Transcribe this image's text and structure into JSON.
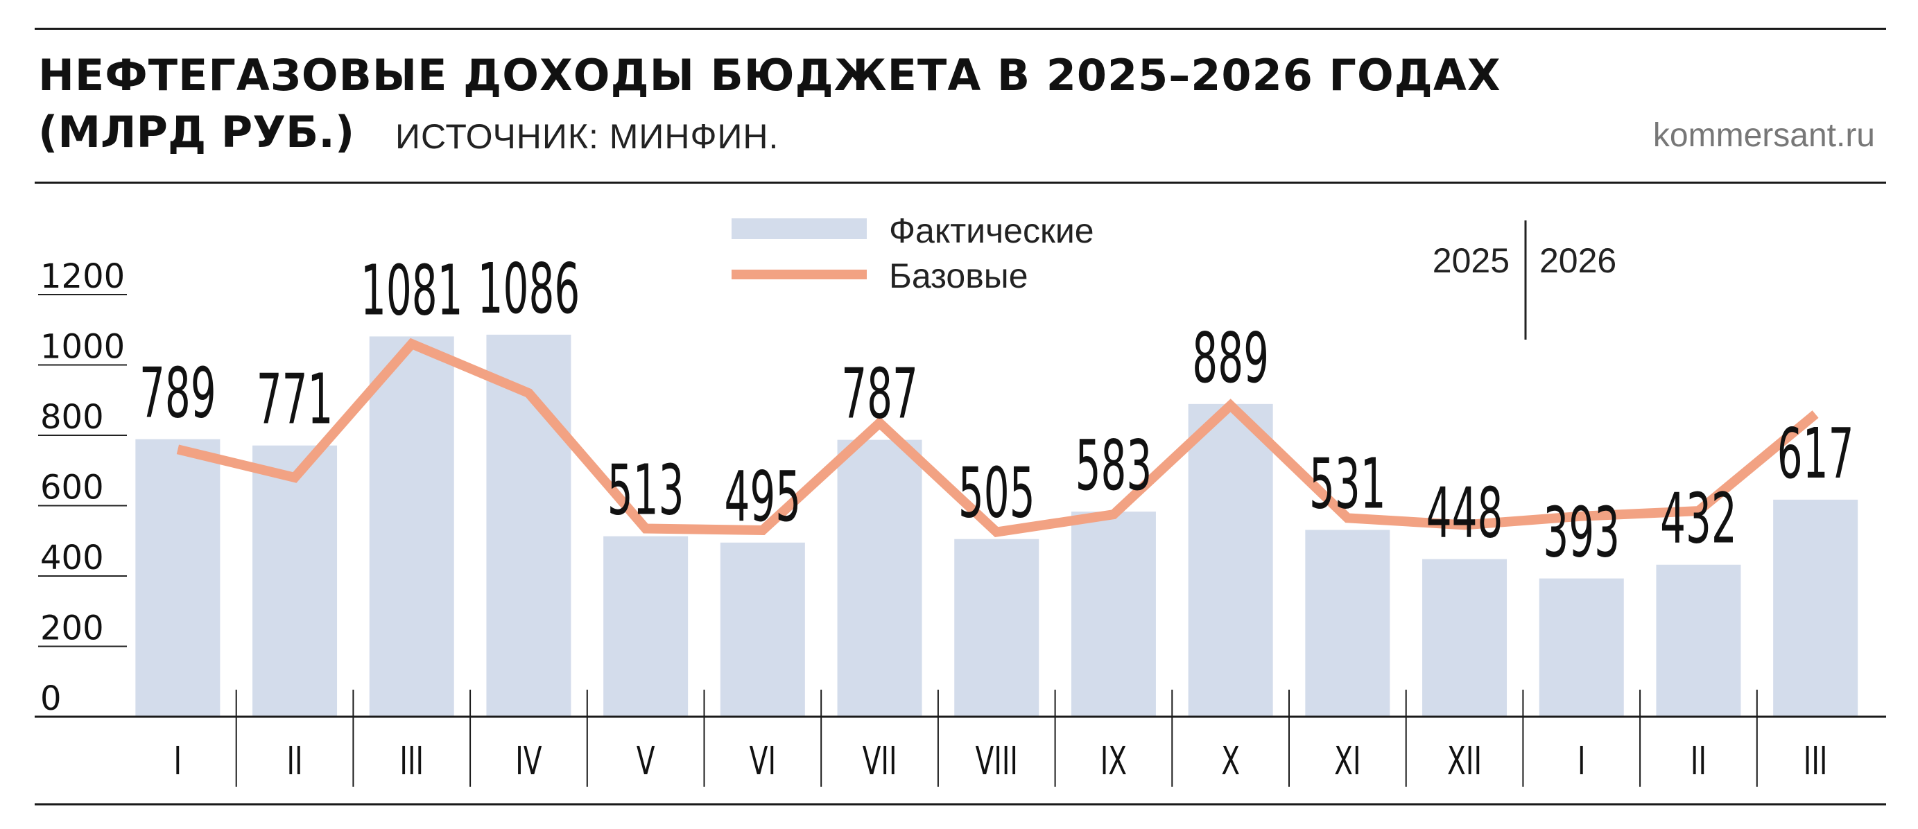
{
  "header": {
    "title_line1": "НЕФТЕГАЗОВЫЕ ДОХОДЫ БЮДЖЕТА В 2025–2026 ГОДАХ",
    "title_line2": "(МЛРД РУБ.)",
    "source": "ИСТОЧНИК: МИНФИН.",
    "site": "kommersant.ru"
  },
  "chart_data": {
    "type": "bar",
    "title": "НЕФТЕГАЗОВЫЕ ДОХОДЫ БЮДЖЕТА В 2025–2026 ГОДАХ (МЛРД РУБ.)",
    "categories": [
      "I",
      "II",
      "III",
      "IV",
      "V",
      "VI",
      "VII",
      "VIII",
      "IX",
      "X",
      "XI",
      "XII",
      "I",
      "II",
      "III"
    ],
    "year_labels": [
      "2025",
      "2026"
    ],
    "ylim": [
      0,
      1200
    ],
    "yticks": [
      0,
      200,
      400,
      600,
      800,
      1000,
      1200
    ],
    "grid": false,
    "legend_position": "top-center",
    "series": [
      {
        "name": "Фактические",
        "type": "bar",
        "color": "#d3dceb",
        "values": [
          789,
          771,
          1081,
          1086,
          513,
          495,
          787,
          505,
          583,
          889,
          531,
          448,
          393,
          432,
          617
        ],
        "labels": [
          "789",
          "771",
          "1081",
          "1086",
          "513",
          "495",
          "787",
          "505",
          "583",
          "889",
          "531",
          "448",
          "393",
          "432",
          "617"
        ]
      },
      {
        "name": "Базовые",
        "type": "line",
        "color": "#f2a283",
        "values": [
          760,
          680,
          1060,
          920,
          535,
          530,
          835,
          525,
          575,
          885,
          565,
          545,
          570,
          585,
          860
        ]
      }
    ]
  }
}
